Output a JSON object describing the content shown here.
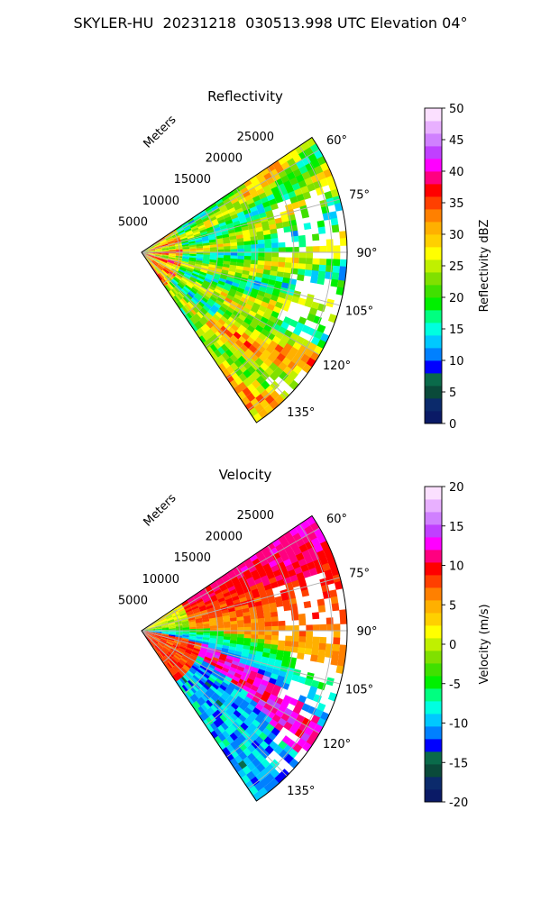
{
  "figure": {
    "title": "SKYLER-HU  20231218  030513.998 UTC Elevation 04°"
  },
  "chart_data": [
    {
      "type": "heatmap",
      "panel": "reflectivity",
      "projection": "polar-sector",
      "title": "Reflectivity",
      "range_label": "Meters",
      "range_ticks": [
        5000,
        10000,
        15000,
        20000,
        25000
      ],
      "range_max": 27000,
      "azimuth_ticks": [
        "60°",
        "75°",
        "90°",
        "105°",
        "120°",
        "135°"
      ],
      "azimuth_range": [
        56,
        146
      ],
      "grid": true,
      "colorbar": {
        "label": "Reflectivity dBZ",
        "min": 0,
        "max": 50,
        "ticks": [
          0,
          5,
          10,
          15,
          20,
          25,
          30,
          35,
          40,
          45,
          50
        ],
        "colors": [
          "#0a1a66",
          "#0b2a6b",
          "#0a4a3a",
          "#0a6a4a",
          "#0000ff",
          "#0080ff",
          "#00c8ff",
          "#00ffe0",
          "#00ff80",
          "#00f000",
          "#40e000",
          "#80e000",
          "#c0f000",
          "#ffff00",
          "#ffd000",
          "#ffb000",
          "#ff8000",
          "#ff4000",
          "#ff0000",
          "#ff0080",
          "#ff00ff",
          "#c040ff",
          "#d080ff",
          "#e8b0ff",
          "#fbe0ff"
        ]
      }
    },
    {
      "type": "heatmap",
      "panel": "velocity",
      "projection": "polar-sector",
      "title": "Velocity",
      "range_label": "Meters",
      "range_ticks": [
        5000,
        10000,
        15000,
        20000,
        25000
      ],
      "range_max": 27000,
      "azimuth_ticks": [
        "60°",
        "75°",
        "90°",
        "105°",
        "120°",
        "135°"
      ],
      "azimuth_range": [
        56,
        146
      ],
      "grid": true,
      "colorbar": {
        "label": "Velocity (m/s)",
        "min": -20,
        "max": 20,
        "ticks": [
          -20,
          -15,
          -10,
          -5,
          0,
          5,
          10,
          15,
          20
        ],
        "colors": [
          "#0a1a66",
          "#0b2a6b",
          "#0a4a3a",
          "#0a6a4a",
          "#0000ff",
          "#0080ff",
          "#00c8ff",
          "#00ffe0",
          "#00ff80",
          "#00f000",
          "#40e000",
          "#80e000",
          "#c0f000",
          "#ffff00",
          "#ffd000",
          "#ffb000",
          "#ff8000",
          "#ff4000",
          "#ff0000",
          "#ff0080",
          "#ff00ff",
          "#c040ff",
          "#d080ff",
          "#e8b0ff",
          "#fbe0ff"
        ]
      }
    }
  ]
}
